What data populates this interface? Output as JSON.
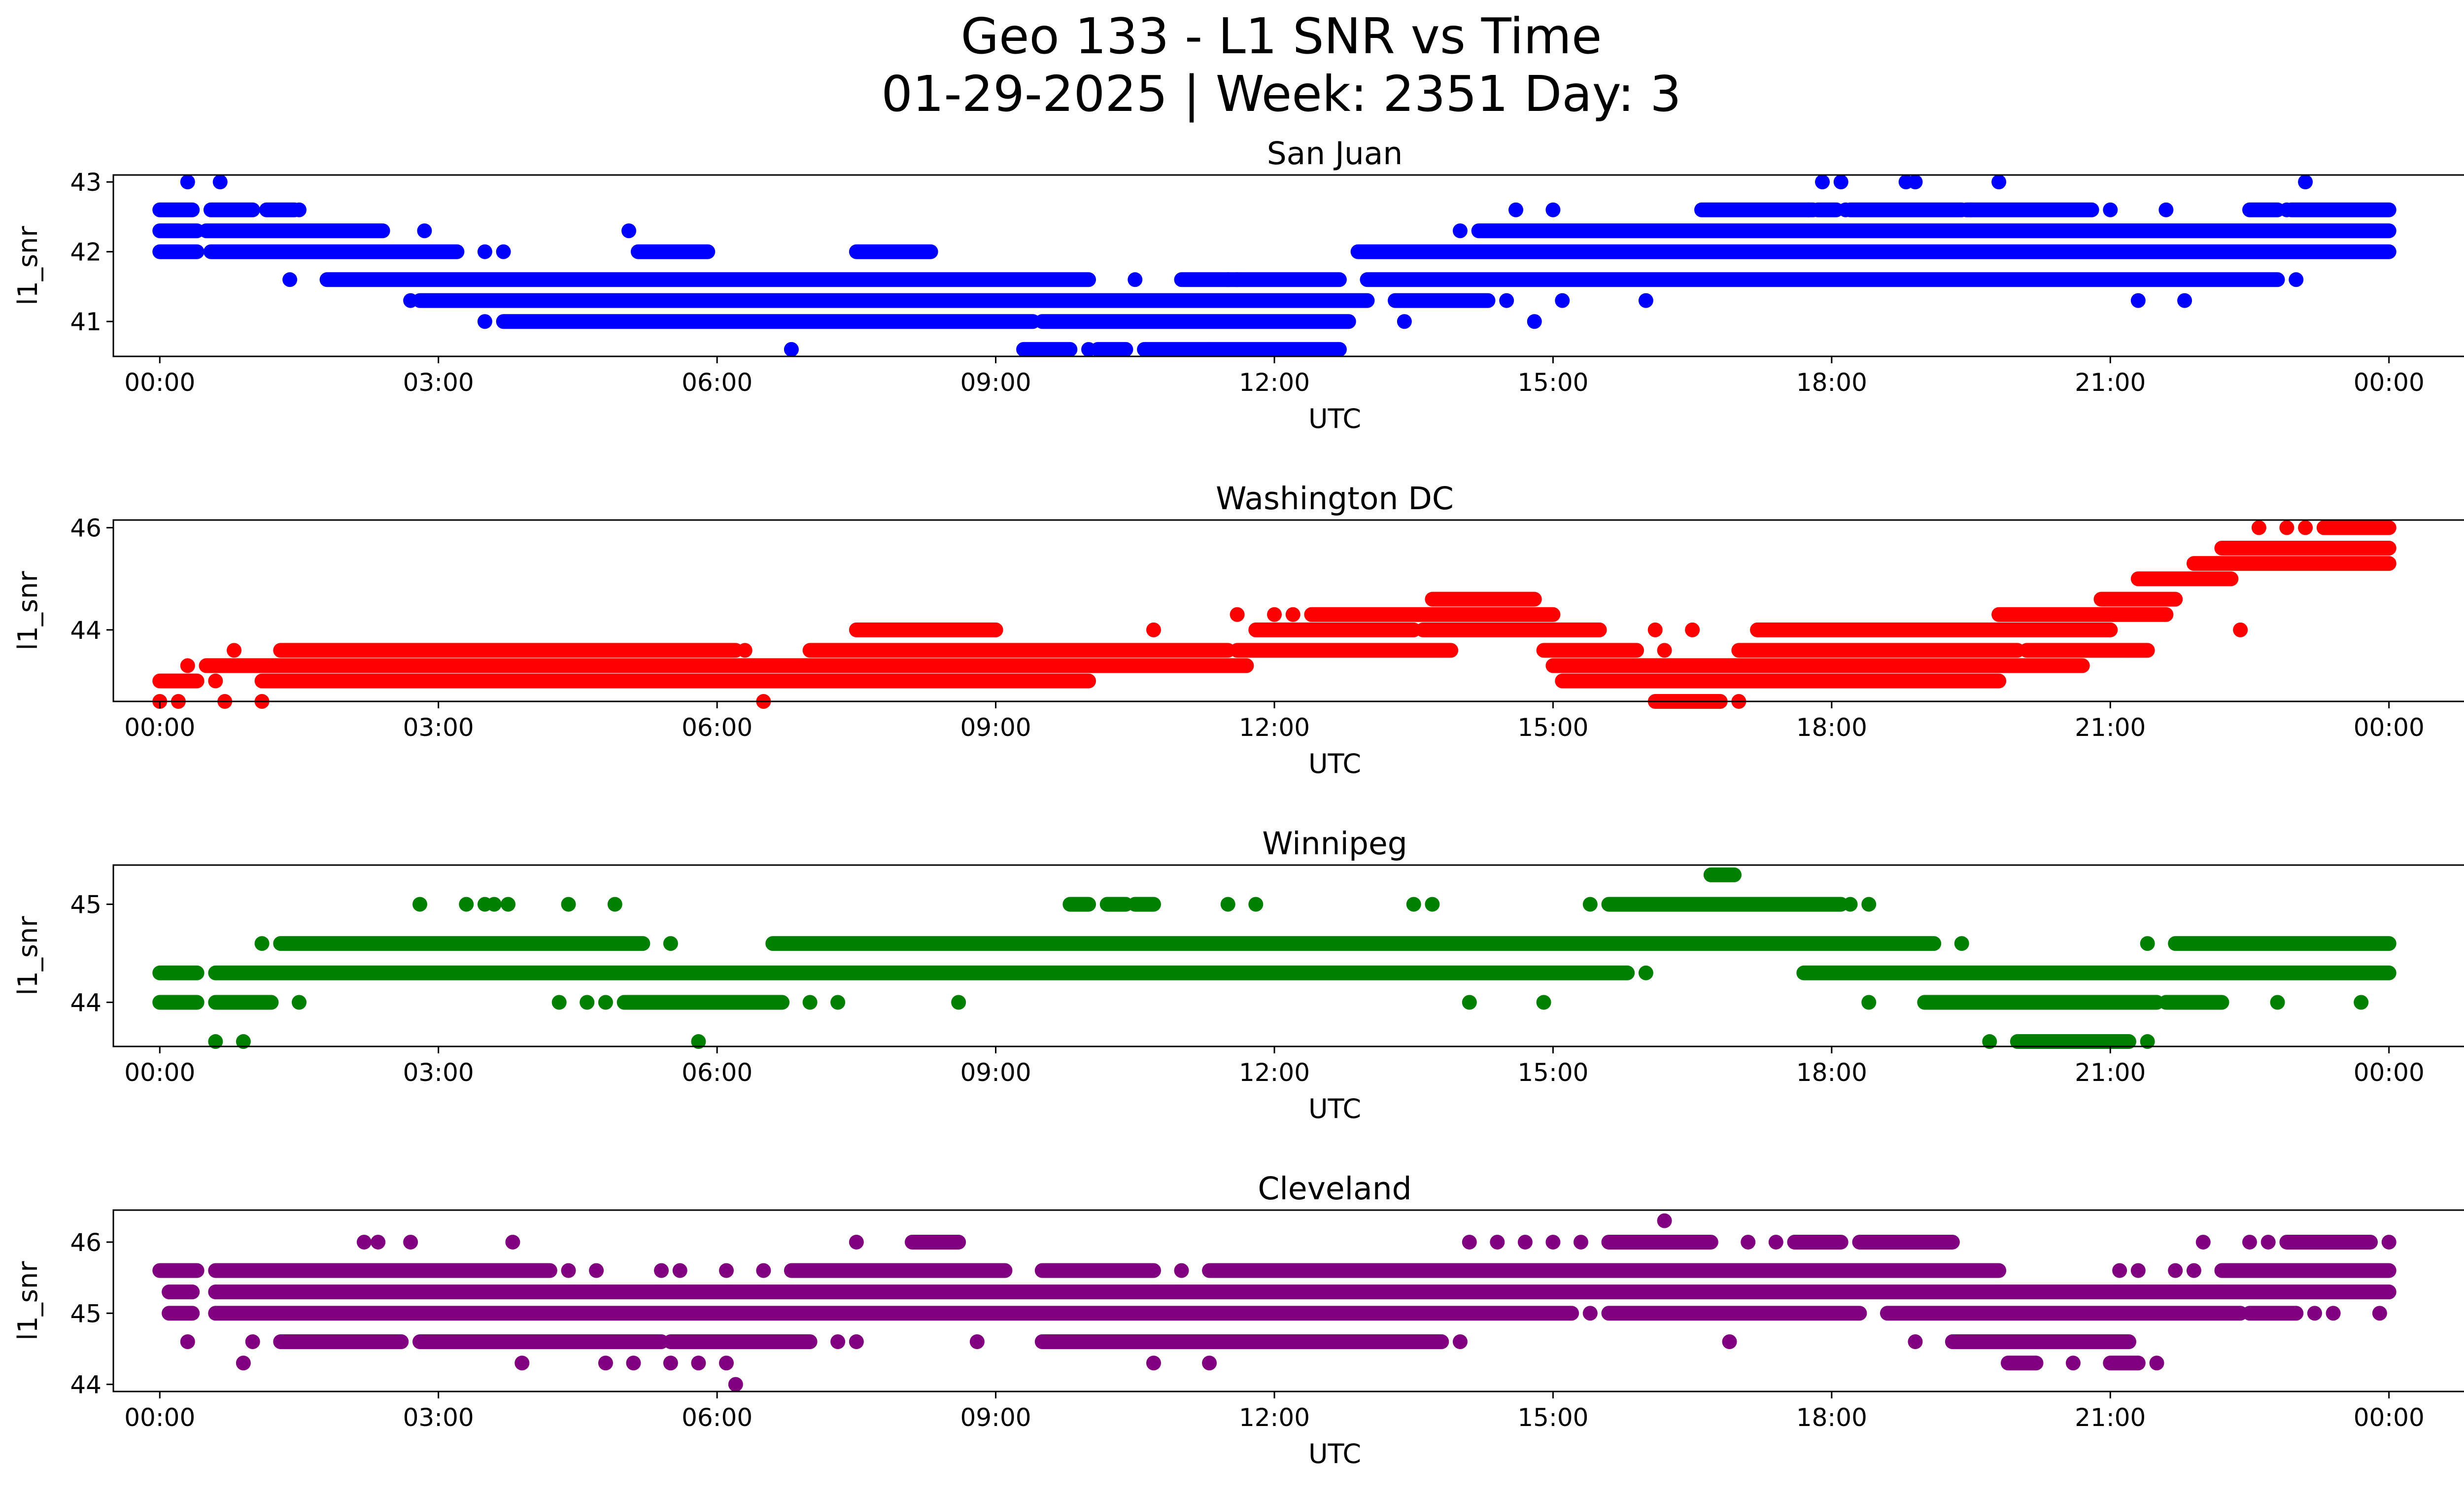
{
  "figure": {
    "title_line1": "Geo 133 - L1 SNR vs Time",
    "title_line2": "01-29-2025 | Week: 2351 Day: 3"
  },
  "chart_data": [
    {
      "type": "scatter",
      "title": "San Juan",
      "xlabel": "UTC",
      "ylabel": "l1_snr",
      "color": "#0000ff",
      "xlim": [
        -0.5,
        25.8
      ],
      "ylim": [
        40.5,
        43.1
      ],
      "yticks": [
        41,
        42,
        43
      ],
      "xticks": [
        0,
        3,
        6,
        9,
        12,
        15,
        18,
        21,
        24
      ],
      "xtick_labels": [
        "00:00",
        "03:00",
        "06:00",
        "09:00",
        "12:00",
        "15:00",
        "18:00",
        "21:00",
        "00:00"
      ],
      "levels": [
        {
          "y": 43.0,
          "segments": [],
          "points": [
            0.3,
            0.65,
            17.9,
            18.1,
            18.8,
            18.9,
            19.8,
            23.1
          ]
        },
        {
          "y": 42.6,
          "segments": [
            [
              0,
              0.35
            ],
            [
              0.55,
              1.0
            ],
            [
              1.15,
              1.45
            ],
            [
              16.6,
              17.8
            ],
            [
              17.85,
              18.05
            ],
            [
              18.2,
              19.4
            ],
            [
              19.45,
              20.8
            ],
            [
              22.5,
              22.8
            ],
            [
              22.95,
              24.0
            ]
          ],
          "points": [
            1.5,
            14.6,
            15.0,
            17.75,
            18.15,
            19.5,
            21.0,
            21.6,
            22.9
          ]
        },
        {
          "y": 42.3,
          "segments": [
            [
              0,
              0.4
            ],
            [
              0.5,
              2.4
            ],
            [
              14.2,
              24.0
            ]
          ],
          "points": [
            2.85,
            5.05,
            14.0
          ]
        },
        {
          "y": 42.0,
          "segments": [
            [
              0,
              0.4
            ],
            [
              0.55,
              3.2
            ],
            [
              5.15,
              5.9
            ],
            [
              7.5,
              8.3
            ],
            [
              12.9,
              24.0
            ]
          ],
          "points": [
            3.5,
            3.7
          ]
        },
        {
          "y": 41.6,
          "segments": [
            [
              1.8,
              10.0
            ],
            [
              11.0,
              12.7
            ],
            [
              13.0,
              22.8
            ]
          ],
          "points": [
            1.4,
            10.5,
            11.5,
            11.6,
            23.0
          ]
        },
        {
          "y": 41.3,
          "segments": [
            [
              2.8,
              13.0
            ],
            [
              13.3,
              14.3
            ]
          ],
          "points": [
            2.7,
            14.5,
            15.1,
            16.0,
            21.3,
            21.8
          ]
        },
        {
          "y": 41.0,
          "segments": [
            [
              3.7,
              9.4
            ],
            [
              9.5,
              12.8
            ]
          ],
          "points": [
            3.5,
            13.4,
            14.8
          ]
        },
        {
          "y": 40.6,
          "segments": [
            [
              9.3,
              9.8
            ],
            [
              10.1,
              10.4
            ],
            [
              10.6,
              12.7
            ]
          ],
          "points": [
            6.8,
            10.0,
            11.3
          ]
        }
      ]
    },
    {
      "type": "scatter",
      "title": "Washington DC",
      "xlabel": "UTC",
      "ylabel": "l1_snr",
      "color": "#ff0000",
      "xlim": [
        -0.5,
        25.8
      ],
      "ylim": [
        42.6,
        46.15
      ],
      "yticks": [
        44,
        46
      ],
      "xticks": [
        0,
        3,
        6,
        9,
        12,
        15,
        18,
        21,
        24
      ],
      "xtick_labels": [
        "00:00",
        "03:00",
        "06:00",
        "09:00",
        "12:00",
        "15:00",
        "18:00",
        "21:00",
        "00:00"
      ],
      "levels": [
        {
          "y": 46.0,
          "segments": [
            [
              23.3,
              24.0
            ]
          ],
          "points": [
            22.6,
            22.9,
            23.1
          ]
        },
        {
          "y": 45.6,
          "segments": [
            [
              22.2,
              24.0
            ]
          ],
          "points": []
        },
        {
          "y": 45.3,
          "segments": [
            [
              21.9,
              24.0
            ]
          ],
          "points": []
        },
        {
          "y": 45.0,
          "segments": [
            [
              21.3,
              22.3
            ]
          ],
          "points": []
        },
        {
          "y": 44.6,
          "segments": [
            [
              20.9,
              21.7
            ],
            [
              13.7,
              14.8
            ]
          ],
          "points": []
        },
        {
          "y": 44.3,
          "segments": [
            [
              12.4,
              15.0
            ],
            [
              19.8,
              21.6
            ]
          ],
          "points": [
            11.6,
            12.0,
            12.2
          ]
        },
        {
          "y": 44.0,
          "segments": [
            [
              7.5,
              9.0
            ],
            [
              11.8,
              13.5
            ],
            [
              13.6,
              15.5
            ],
            [
              17.2,
              21.0
            ]
          ],
          "points": [
            10.7,
            16.1,
            16.5,
            22.4
          ]
        },
        {
          "y": 43.6,
          "segments": [
            [
              1.3,
              6.2
            ],
            [
              7.0,
              11.5
            ],
            [
              11.6,
              13.9
            ],
            [
              14.9,
              15.9
            ],
            [
              17.0,
              20.0
            ],
            [
              20.1,
              21.4
            ]
          ],
          "points": [
            0.8,
            6.3,
            16.2
          ]
        },
        {
          "y": 43.3,
          "segments": [
            [
              0.5,
              11.7
            ],
            [
              15.0,
              20.7
            ]
          ],
          "points": [
            0.3
          ]
        },
        {
          "y": 43.0,
          "segments": [
            [
              0.0,
              0.4
            ],
            [
              1.1,
              10.0
            ],
            [
              15.1,
              19.8
            ]
          ],
          "points": [
            0.6
          ]
        },
        {
          "y": 42.6,
          "segments": [
            [
              16.1,
              16.8
            ]
          ],
          "points": [
            0.0,
            0.2,
            0.7,
            1.1,
            6.5,
            17.0
          ]
        }
      ]
    },
    {
      "type": "scatter",
      "title": "Winnipeg",
      "xlabel": "UTC",
      "ylabel": "l1_snr",
      "color": "#008000",
      "xlim": [
        -0.5,
        25.8
      ],
      "ylim": [
        43.55,
        45.4
      ],
      "yticks": [
        44,
        45
      ],
      "xticks": [
        0,
        3,
        6,
        9,
        12,
        15,
        18,
        21,
        24
      ],
      "xtick_labels": [
        "00:00",
        "03:00",
        "06:00",
        "09:00",
        "12:00",
        "15:00",
        "18:00",
        "21:00",
        "00:00"
      ],
      "levels": [
        {
          "y": 45.3,
          "segments": [
            [
              16.7,
              16.95
            ]
          ],
          "points": []
        },
        {
          "y": 45.0,
          "segments": [
            [
              15.6,
              18.1
            ],
            [
              9.8,
              10.0
            ],
            [
              10.2,
              10.4
            ],
            [
              10.5,
              10.7
            ]
          ],
          "points": [
            2.8,
            3.3,
            3.5,
            3.6,
            3.75,
            4.4,
            4.9,
            11.5,
            11.8,
            13.5,
            13.7,
            15.4,
            18.2,
            18.4
          ]
        },
        {
          "y": 44.6,
          "segments": [
            [
              1.3,
              5.2
            ],
            [
              6.6,
              19.1
            ],
            [
              21.7,
              24.0
            ]
          ],
          "points": [
            1.1,
            5.5,
            19.4,
            21.4
          ]
        },
        {
          "y": 44.3,
          "segments": [
            [
              0.0,
              0.4
            ],
            [
              0.6,
              15.8
            ],
            [
              17.7,
              24.0
            ]
          ],
          "points": [
            16.0
          ]
        },
        {
          "y": 44.0,
          "segments": [
            [
              0.0,
              0.4
            ],
            [
              0.6,
              1.2
            ],
            [
              5.0,
              6.7
            ],
            [
              19.0,
              21.5
            ],
            [
              21.6,
              22.2
            ]
          ],
          "points": [
            1.5,
            4.3,
            4.6,
            4.8,
            7.0,
            7.3,
            8.6,
            14.1,
            14.9,
            18.4,
            22.8,
            23.7
          ]
        },
        {
          "y": 43.6,
          "segments": [
            [
              20.0,
              21.2
            ]
          ],
          "points": [
            0.6,
            0.9,
            5.8,
            19.7,
            21.4
          ]
        }
      ]
    },
    {
      "type": "scatter",
      "title": "Cleveland",
      "xlabel": "UTC",
      "ylabel": "l1_snr",
      "color": "#800080",
      "xlim": [
        -0.5,
        25.8
      ],
      "ylim": [
        43.9,
        46.45
      ],
      "yticks": [
        44,
        45,
        46
      ],
      "xticks": [
        0,
        3,
        6,
        9,
        12,
        15,
        18,
        21,
        24
      ],
      "xtick_labels": [
        "00:00",
        "03:00",
        "06:00",
        "09:00",
        "12:00",
        "15:00",
        "18:00",
        "21:00",
        "00:00"
      ],
      "levels": [
        {
          "y": 46.3,
          "segments": [],
          "points": [
            16.2
          ]
        },
        {
          "y": 46.0,
          "segments": [
            [
              8.1,
              8.6
            ],
            [
              15.6,
              16.7
            ],
            [
              17.6,
              18.1
            ],
            [
              18.3,
              19.3
            ],
            [
              22.9,
              23.8
            ]
          ],
          "points": [
            2.2,
            2.35,
            2.7,
            3.8,
            7.5,
            14.1,
            14.4,
            14.7,
            15.0,
            15.3,
            17.1,
            17.4,
            22.0,
            22.5,
            22.7,
            24.0
          ]
        },
        {
          "y": 45.6,
          "segments": [
            [
              0.0,
              0.4
            ],
            [
              0.6,
              4.2
            ],
            [
              6.8,
              9.1
            ],
            [
              9.5,
              10.7
            ],
            [
              11.3,
              19.8
            ],
            [
              22.2,
              24.0
            ]
          ],
          "points": [
            4.4,
            4.7,
            5.4,
            5.6,
            6.1,
            6.5,
            11.0,
            21.1,
            21.3,
            21.7,
            21.9
          ]
        },
        {
          "y": 45.3,
          "segments": [
            [
              0.1,
              0.35
            ],
            [
              0.6,
              24.0
            ]
          ],
          "points": []
        },
        {
          "y": 45.0,
          "segments": [
            [
              0.1,
              0.35
            ],
            [
              0.6,
              15.2
            ],
            [
              15.6,
              18.3
            ],
            [
              18.6,
              22.4
            ],
            [
              22.5,
              23.0
            ]
          ],
          "points": [
            15.4,
            23.2,
            23.4,
            23.9
          ]
        },
        {
          "y": 44.6,
          "segments": [
            [
              1.3,
              2.6
            ],
            [
              2.8,
              5.4
            ],
            [
              5.5,
              7.0
            ],
            [
              9.5,
              13.8
            ],
            [
              19.3,
              21.2
            ]
          ],
          "points": [
            0.3,
            1.0,
            7.3,
            7.5,
            8.8,
            14.0,
            16.9,
            18.9
          ]
        },
        {
          "y": 44.3,
          "segments": [
            [
              19.9,
              20.2
            ],
            [
              21.0,
              21.3
            ]
          ],
          "points": [
            0.9,
            3.9,
            4.8,
            5.1,
            5.5,
            5.8,
            6.1,
            10.7,
            11.3,
            20.6,
            21.5
          ]
        },
        {
          "y": 44.0,
          "segments": [],
          "points": [
            6.2
          ]
        }
      ]
    }
  ]
}
